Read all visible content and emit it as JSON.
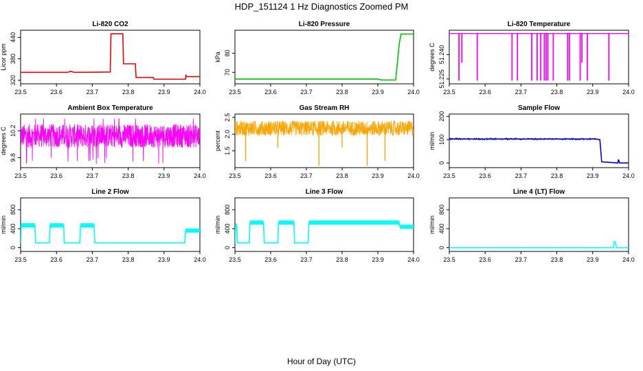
{
  "title": "HDP_151124  1 Hz Diagnostics Zoomed PM",
  "xlabel": "Hour of Day (UTC)",
  "chart_data": [
    {
      "type": "line",
      "title": "Li-820 CO2",
      "ylabel": "Licor ppm",
      "color": "#e8000b",
      "xlim": [
        23.5,
        24.0
      ],
      "ylim": [
        310,
        460
      ],
      "xticks": [
        "23.5",
        "23.6",
        "23.7",
        "23.8",
        "23.9",
        "24.0"
      ],
      "yticks": [
        320,
        380,
        440
      ],
      "series": [
        {
          "x": [
            23.5,
            23.63,
            23.64,
            23.65,
            23.75,
            23.752,
            23.785,
            23.787,
            23.82,
            23.822,
            23.87,
            23.872,
            23.96,
            23.961,
            23.962,
            23.97,
            24.0
          ],
          "y": [
            342,
            342,
            345,
            342,
            343,
            450,
            450,
            366,
            366,
            328,
            328,
            323,
            323,
            336,
            330,
            330,
            330
          ]
        }
      ]
    },
    {
      "type": "line",
      "title": "Li-820 Pressure",
      "ylabel": "kPa",
      "color": "#00c000",
      "xlim": [
        23.5,
        24.0
      ],
      "ylim": [
        64,
        92
      ],
      "xticks": [
        "23.5",
        "23.6",
        "23.7",
        "23.8",
        "23.9",
        "24.0"
      ],
      "yticks": [
        70,
        80
      ],
      "series": [
        {
          "x": [
            23.5,
            23.9,
            23.91,
            23.95,
            23.96,
            23.965,
            24.0
          ],
          "y": [
            66.5,
            66.5,
            66,
            66,
            85,
            90,
            90
          ]
        }
      ]
    },
    {
      "type": "line",
      "title": "Li-820 Temperature",
      "ylabel": "degrees C",
      "color": "#ff00ff",
      "xlim": [
        23.5,
        24.0
      ],
      "ylim": [
        51.222,
        51.255
      ],
      "xticks": [
        "23.5",
        "23.6",
        "23.7",
        "23.8",
        "23.9",
        "24.0"
      ],
      "yticks": [
        "51.225",
        "51.240"
      ],
      "series": [
        {
          "base": 51.253,
          "drops_x": [
            23.527,
            23.535,
            23.578,
            23.675,
            23.69,
            23.73,
            23.745,
            23.755,
            23.765,
            23.77,
            23.775,
            23.79,
            23.83,
            23.835,
            23.865,
            23.87,
            23.885,
            23.945
          ],
          "drops_y": [
            51.224,
            51.235,
            51.224,
            51.224,
            51.224,
            51.224,
            51.224,
            51.224,
            51.224,
            51.224,
            51.224,
            51.224,
            51.224,
            51.224,
            51.224,
            51.235,
            51.224,
            51.224
          ]
        }
      ]
    },
    {
      "type": "line",
      "title": "Ambient Box Temperature",
      "ylabel": "degrees C",
      "color": "#ff00ff",
      "xlim": [
        23.5,
        24.0
      ],
      "ylim": [
        9.65,
        10.45
      ],
      "xticks": [
        "23.5",
        "23.6",
        "23.7",
        "23.8",
        "23.9",
        "24.0"
      ],
      "yticks": [
        "9.8",
        "10.2"
      ],
      "series": [
        {
          "mean": 10.1,
          "low": 9.95,
          "high": 10.3,
          "spike_low": 9.7,
          "spike_high": 10.38
        }
      ]
    },
    {
      "type": "line",
      "title": "Gas Stream RH",
      "ylabel": "percent",
      "color": "#ffa500",
      "xlim": [
        23.5,
        24.0
      ],
      "ylim": [
        1.0,
        2.6
      ],
      "xticks": [
        "23.5",
        "23.6",
        "23.7",
        "23.8",
        "23.9",
        "24.0"
      ],
      "yticks": [
        "1.5",
        "2.0",
        "2.5"
      ],
      "series": [
        {
          "mean": 2.15,
          "low": 1.95,
          "high": 2.4,
          "spikes_x": [
            23.53,
            23.62,
            23.735,
            23.8,
            23.87,
            23.92
          ],
          "spikes_y": [
            1.2,
            1.6,
            1.05,
            1.6,
            1.05,
            1.2
          ]
        }
      ]
    },
    {
      "type": "line",
      "title": "Sample Flow",
      "ylabel": "ml/min",
      "color": "#0000cd",
      "xlim": [
        23.5,
        24.0
      ],
      "ylim": [
        -20,
        210
      ],
      "xticks": [
        "23.5",
        "23.6",
        "23.7",
        "23.8",
        "23.9",
        "24.0"
      ],
      "yticks": [
        0,
        100,
        200
      ],
      "series": [
        {
          "x": [
            23.5,
            23.91,
            23.92,
            23.925,
            23.97,
            23.972,
            23.975,
            24.0
          ],
          "y": [
            103,
            103,
            100,
            5,
            0,
            15,
            0,
            0
          ]
        }
      ]
    },
    {
      "type": "line",
      "title": "Line 2 Flow",
      "ylabel": "ml/min",
      "color": "#00ffff",
      "xlim": [
        23.5,
        24.0
      ],
      "ylim": [
        -80,
        1050
      ],
      "xticks": [
        "23.5",
        "23.6",
        "23.7",
        "23.8",
        "23.9",
        "24.0"
      ],
      "yticks": [
        0,
        400,
        800
      ],
      "series": [
        {
          "x": [
            23.5,
            23.502,
            23.54,
            23.542,
            23.58,
            23.582,
            23.62,
            23.622,
            23.665,
            23.667,
            23.705,
            23.707,
            23.958,
            23.96,
            24.0
          ],
          "y": [
            100,
            470,
            470,
            100,
            100,
            470,
            470,
            100,
            100,
            470,
            470,
            100,
            100,
            360,
            360
          ]
        }
      ]
    },
    {
      "type": "line",
      "title": "Line 3 Flow",
      "ylabel": "ml/min",
      "color": "#00ffff",
      "xlim": [
        23.5,
        24.0
      ],
      "ylim": [
        -80,
        1050
      ],
      "xticks": [
        "23.5",
        "23.6",
        "23.7",
        "23.8",
        "23.9",
        "24.0"
      ],
      "yticks": [
        0,
        400,
        800
      ],
      "series": [
        {
          "x": [
            23.5,
            23.502,
            23.505,
            23.507,
            23.54,
            23.542,
            23.58,
            23.582,
            23.62,
            23.622,
            23.665,
            23.667,
            23.705,
            23.707,
            23.96,
            23.962,
            24.0
          ],
          "y": [
            100,
            470,
            470,
            100,
            100,
            530,
            530,
            100,
            100,
            530,
            530,
            100,
            100,
            530,
            530,
            440,
            440
          ]
        }
      ]
    },
    {
      "type": "line",
      "title": "Line 4 (LT) Flow",
      "ylabel": "ml/min",
      "color": "#00ffff",
      "xlim": [
        23.5,
        24.0
      ],
      "ylim": [
        -80,
        1050
      ],
      "xticks": [
        "23.5",
        "23.6",
        "23.7",
        "23.8",
        "23.9",
        "24.0"
      ],
      "yticks": [
        0,
        400,
        800
      ],
      "series": [
        {
          "x": [
            23.5,
            23.958,
            23.96,
            23.963,
            23.966,
            24.0
          ],
          "y": [
            0,
            0,
            130,
            130,
            0,
            0
          ]
        }
      ]
    }
  ]
}
